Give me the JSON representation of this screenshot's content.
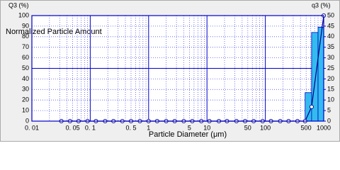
{
  "chart_data": {
    "type": "histogram-line",
    "y_label": "Q3 (%)",
    "y2_label": "q3 (%)",
    "annotation": "Normalized Particle Amount",
    "x_label": "Particle Diameter (μm)",
    "xscale": "log",
    "xlim": [
      0.01,
      1000
    ],
    "xticks": [
      {
        "value": 0.01,
        "label": "0. 01"
      },
      {
        "value": 0.05,
        "label": "0. 05"
      },
      {
        "value": 0.1,
        "label": "0. 1"
      },
      {
        "value": 0.5,
        "label": "0. 5"
      },
      1,
      5,
      10,
      50,
      100,
      500,
      1000
    ],
    "xminorticks": [
      0.02,
      0.03,
      0.04,
      0.06,
      0.07,
      0.08,
      0.09,
      0.2,
      0.3,
      0.4,
      0.6,
      0.7,
      0.8,
      0.9,
      2,
      3,
      4,
      6,
      7,
      8,
      9,
      20,
      30,
      40,
      60,
      70,
      80,
      90,
      200,
      300,
      400,
      600,
      700,
      800,
      900
    ],
    "ylim": [
      0,
      100
    ],
    "yticks": [
      0,
      10,
      20,
      30,
      40,
      50,
      60,
      70,
      80,
      90,
      100
    ],
    "y2lim": [
      0,
      50
    ],
    "y2ticks": [
      0,
      5,
      10,
      15,
      20,
      25,
      30,
      35,
      40,
      45,
      50
    ],
    "grid": true,
    "series": [
      {
        "type": "line",
        "axis": "y",
        "color": "#000080",
        "x": [
          0.032,
          0.045,
          0.063,
          0.09,
          0.125,
          0.18,
          0.25,
          0.355,
          0.5,
          0.71,
          1,
          1.4,
          2,
          2.8,
          4,
          5.6,
          8,
          11,
          16,
          22,
          32,
          45,
          63,
          90,
          125,
          180,
          250,
          355,
          480,
          620,
          1000
        ],
        "values": [
          0,
          0,
          0,
          0,
          0,
          0,
          0,
          0,
          0,
          0,
          0,
          0,
          0,
          0,
          0,
          0,
          0,
          0,
          0,
          0,
          0,
          0,
          0,
          0,
          0,
          0,
          0,
          0,
          0,
          13.5,
          100
        ]
      },
      {
        "type": "histogram",
        "axis": "y2",
        "color": "#33bbee",
        "bins": [
          480,
          620,
          800,
          1000
        ],
        "values": [
          13.5,
          42,
          44.5
        ]
      }
    ]
  }
}
